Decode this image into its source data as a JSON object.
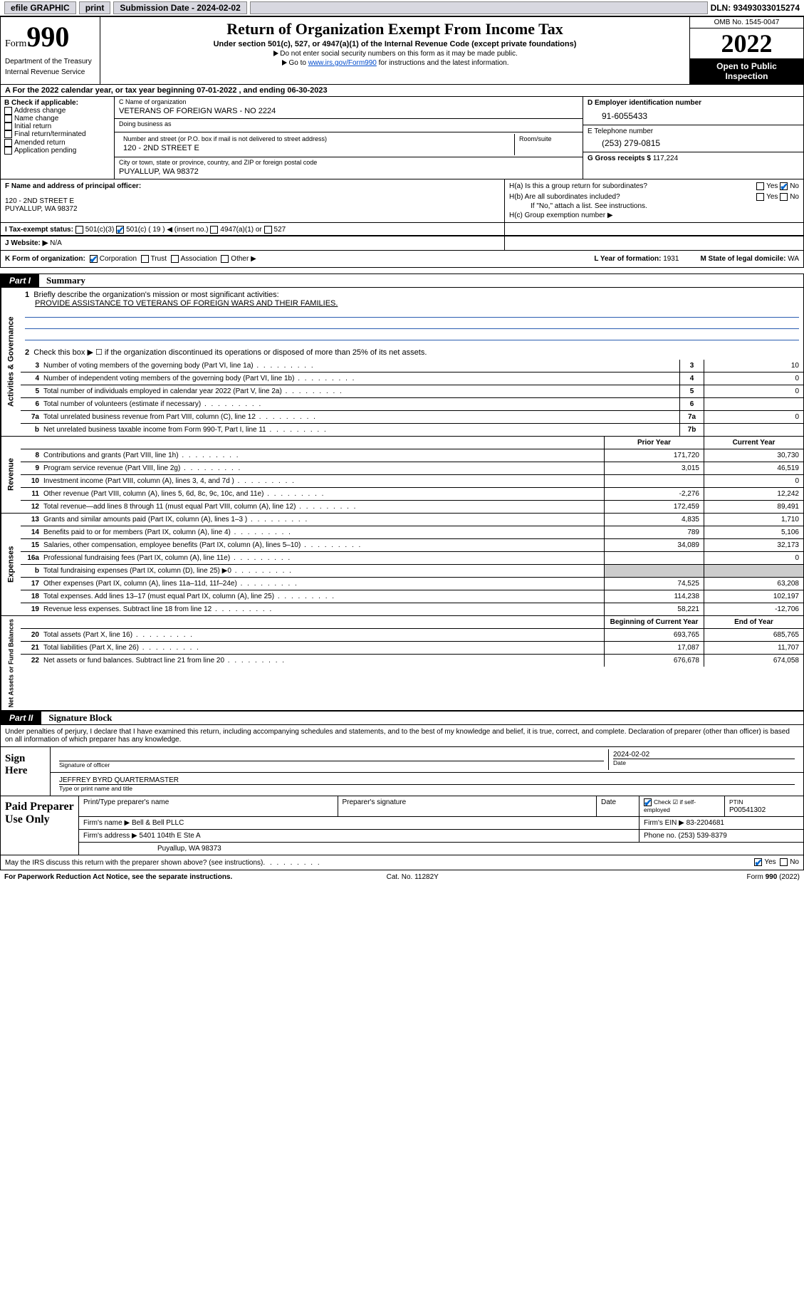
{
  "topbar": {
    "efile_label": "efile GRAPHIC",
    "print_btn": "print",
    "submission_label": "Submission Date - 2024-02-02",
    "dln": "DLN: 93493033015274"
  },
  "header": {
    "form_word": "Form",
    "form_num": "990",
    "dept": "Department of the Treasury",
    "irs": "Internal Revenue Service",
    "title": "Return of Organization Exempt From Income Tax",
    "sub1": "Under section 501(c), 527, or 4947(a)(1) of the Internal Revenue Code (except private foundations)",
    "sub2": "Do not enter social security numbers on this form as it may be made public.",
    "sub3_pre": "Go to ",
    "sub3_link": "www.irs.gov/Form990",
    "sub3_post": " for instructions and the latest information.",
    "omb": "OMB No. 1545-0047",
    "year": "2022",
    "open_public1": "Open to Public",
    "open_public2": "Inspection"
  },
  "period": "For the 2022 calendar year, or tax year beginning 07-01-2022   , and ending 06-30-2023",
  "box_b": {
    "title": "B Check if applicable:",
    "addr_change": "Address change",
    "name_change": "Name change",
    "initial": "Initial return",
    "final": "Final return/terminated",
    "amended": "Amended return",
    "app_pending": "Application pending"
  },
  "box_c": {
    "label": "C Name of organization",
    "name": "VETERANS OF FOREIGN WARS - NO 2224",
    "dba_label": "Doing business as",
    "dba": "",
    "street_label": "Number and street (or P.O. box if mail is not delivered to street address)",
    "room_label": "Room/suite",
    "street": "120 - 2ND STREET E",
    "city_label": "City or town, state or province, country, and ZIP or foreign postal code",
    "city": "PUYALLUP, WA  98372"
  },
  "box_d": {
    "label": "D Employer identification number",
    "ein": "91-6055433"
  },
  "box_e": {
    "label": "E Telephone number",
    "phone": "(253) 279-0815"
  },
  "box_g": {
    "label": "G Gross receipts $",
    "amount": "117,224"
  },
  "box_f": {
    "label": "F Name and address of principal officer:",
    "line1": "120 - 2ND STREET E",
    "line2": "PUYALLUP, WA  98372"
  },
  "box_h": {
    "ha": "H(a)  Is this a group return for subordinates?",
    "hb": "H(b)  Are all subordinates included?",
    "hb_note": "If \"No,\" attach a list. See instructions.",
    "hc": "H(c)  Group exemption number ▶",
    "yes": "Yes",
    "no": "No"
  },
  "box_i": {
    "label": "I    Tax-exempt status:",
    "c3": "501(c)(3)",
    "c_other": "501(c) ( 19 ) ◀ (insert no.)",
    "a4947": "4947(a)(1) or",
    "s527": "527"
  },
  "box_j": {
    "label": "J   Website: ▶",
    "val": "N/A"
  },
  "box_k": {
    "label": "K Form of organization:",
    "corp": "Corporation",
    "trust": "Trust",
    "assoc": "Association",
    "other": "Other ▶"
  },
  "box_l": {
    "label": "L Year of formation:",
    "val": "1931"
  },
  "box_m": {
    "label": "M State of legal domicile:",
    "val": "WA"
  },
  "part1": {
    "tab": "Part I",
    "title": "Summary",
    "side_ag": "Activities & Governance",
    "side_rev": "Revenue",
    "side_exp": "Expenses",
    "side_net": "Net Assets or Fund Balances",
    "q1_label": "Briefly describe the organization's mission or most significant activities:",
    "q1_text": "PROVIDE ASSISTANCE TO VETERANS OF FOREIGN WARS AND THEIR FAMILIES.",
    "q2": "Check this box ▶ ☐  if the organization discontinued its operations or disposed of more than 25% of its net assets.",
    "rows_ag": [
      {
        "n": "3",
        "t": "Number of voting members of the governing body (Part VI, line 1a)",
        "box": "3",
        "v": "10"
      },
      {
        "n": "4",
        "t": "Number of independent voting members of the governing body (Part VI, line 1b)",
        "box": "4",
        "v": "0"
      },
      {
        "n": "5",
        "t": "Total number of individuals employed in calendar year 2022 (Part V, line 2a)",
        "box": "5",
        "v": "0"
      },
      {
        "n": "6",
        "t": "Total number of volunteers (estimate if necessary)",
        "box": "6",
        "v": ""
      },
      {
        "n": "7a",
        "t": "Total unrelated business revenue from Part VIII, column (C), line 12",
        "box": "7a",
        "v": "0"
      },
      {
        "n": "b",
        "t": "Net unrelated business taxable income from Form 990-T, Part I, line 11",
        "box": "7b",
        "v": ""
      }
    ],
    "col_prior": "Prior Year",
    "col_current": "Current Year",
    "rows_rev": [
      {
        "n": "8",
        "t": "Contributions and grants (Part VIII, line 1h)",
        "p": "171,720",
        "c": "30,730"
      },
      {
        "n": "9",
        "t": "Program service revenue (Part VIII, line 2g)",
        "p": "3,015",
        "c": "46,519"
      },
      {
        "n": "10",
        "t": "Investment income (Part VIII, column (A), lines 3, 4, and 7d )",
        "p": "",
        "c": "0"
      },
      {
        "n": "11",
        "t": "Other revenue (Part VIII, column (A), lines 5, 6d, 8c, 9c, 10c, and 11e)",
        "p": "-2,276",
        "c": "12,242"
      },
      {
        "n": "12",
        "t": "Total revenue—add lines 8 through 11 (must equal Part VIII, column (A), line 12)",
        "p": "172,459",
        "c": "89,491"
      }
    ],
    "rows_exp": [
      {
        "n": "13",
        "t": "Grants and similar amounts paid (Part IX, column (A), lines 1–3 )",
        "p": "4,835",
        "c": "1,710"
      },
      {
        "n": "14",
        "t": "Benefits paid to or for members (Part IX, column (A), line 4)",
        "p": "789",
        "c": "5,106"
      },
      {
        "n": "15",
        "t": "Salaries, other compensation, employee benefits (Part IX, column (A), lines 5–10)",
        "p": "34,089",
        "c": "32,173"
      },
      {
        "n": "16a",
        "t": "Professional fundraising fees (Part IX, column (A), line 11e)",
        "p": "",
        "c": "0"
      },
      {
        "n": "b",
        "t": "Total fundraising expenses (Part IX, column (D), line 25) ▶0",
        "p": "",
        "c": "",
        "gray": true
      },
      {
        "n": "17",
        "t": "Other expenses (Part IX, column (A), lines 11a–11d, 11f–24e)",
        "p": "74,525",
        "c": "63,208"
      },
      {
        "n": "18",
        "t": "Total expenses. Add lines 13–17 (must equal Part IX, column (A), line 25)",
        "p": "114,238",
        "c": "102,197"
      },
      {
        "n": "19",
        "t": "Revenue less expenses. Subtract line 18 from line 12",
        "p": "58,221",
        "c": "-12,706"
      }
    ],
    "col_begin": "Beginning of Current Year",
    "col_end": "End of Year",
    "rows_net": [
      {
        "n": "20",
        "t": "Total assets (Part X, line 16)",
        "p": "693,765",
        "c": "685,765"
      },
      {
        "n": "21",
        "t": "Total liabilities (Part X, line 26)",
        "p": "17,087",
        "c": "11,707"
      },
      {
        "n": "22",
        "t": "Net assets or fund balances. Subtract line 21 from line 20",
        "p": "676,678",
        "c": "674,058"
      }
    ]
  },
  "part2": {
    "tab": "Part II",
    "title": "Signature Block",
    "decl": "Under penalties of perjury, I declare that I have examined this return, including accompanying schedules and statements, and to the best of my knowledge and belief, it is true, correct, and complete. Declaration of preparer (other than officer) is based on all information of which preparer has any knowledge.",
    "sign_here": "Sign Here",
    "sig_officer": "Signature of officer",
    "sig_date_val": "2024-02-02",
    "sig_date": "Date",
    "officer_name": "JEFFREY BYRD QUARTERMASTER",
    "type_name": "Type or print name and title",
    "paid": "Paid Preparer Use Only",
    "prep_name_h": "Print/Type preparer's name",
    "prep_sig_h": "Preparer's signature",
    "date_h": "Date",
    "check_self": "Check ☑ if self-employed",
    "ptin_h": "PTIN",
    "ptin": "P00541302",
    "firm_name_l": "Firm's name    ▶",
    "firm_name": "Bell & Bell PLLC",
    "firm_ein_l": "Firm's EIN ▶",
    "firm_ein": "83-2204681",
    "firm_addr_l": "Firm's address ▶",
    "firm_addr1": "5401 104th E Ste A",
    "firm_addr2": "Puyallup, WA  98373",
    "phone_l": "Phone no.",
    "phone": "(253) 539-8379",
    "may_irs": "May the IRS discuss this return with the preparer shown above? (see instructions)",
    "yes": "Yes",
    "no": "No"
  },
  "footer": {
    "pra": "For Paperwork Reduction Act Notice, see the separate instructions.",
    "cat": "Cat. No. 11282Y",
    "form": "Form 990 (2022)"
  }
}
